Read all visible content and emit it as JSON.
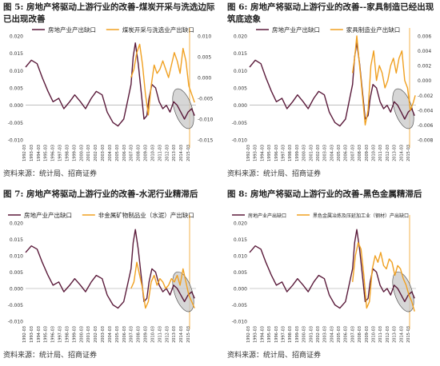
{
  "panels": [
    {
      "title": "图 5: 房地产将驱动上游行业的改善-煤炭开采与洗选边际已出现改善",
      "source": "资料来源：统计局、招商证券",
      "chart_data": {
        "type": "line",
        "legend": [
          "房地产业产出缺口",
          "煤炭开采与洗选业产出缺口"
        ],
        "legend_position": "top",
        "left_axis_ticks": [
          "0.020",
          "0.015",
          "0.010",
          "0.005",
          "0.000",
          "-0.005",
          "-0.010"
        ],
        "right_axis_ticks": [
          "0.010",
          "0.005",
          "0.000",
          "-0.005",
          "-0.010",
          "-0.015"
        ],
        "x_ticks": [
          "1992-03",
          "1993-03",
          "1994-03",
          "1995-03",
          "1996-03",
          "1997-03",
          "1998-03",
          "1999-03",
          "2000-03",
          "2001-03",
          "2002-03",
          "2003-03",
          "2004-03",
          "2005-03",
          "2006-03",
          "2007-03",
          "2008-03",
          "2009-03",
          "2010-03",
          "2011-03",
          "2012-03",
          "2013-03",
          "2014-03",
          "2015-03"
        ],
        "ylim_left": [
          -0.01,
          0.02
        ],
        "ylim_right": [
          -0.015,
          0.01
        ],
        "x_range": [
          1992.2,
          2015.8
        ],
        "series": [
          {
            "name": "房地产业产出缺口",
            "color": "#5a1a3a",
            "axis": "left",
            "x": [
              1992.2,
              1993,
              1993.8,
              1994.5,
              1995.3,
              1996,
              1996.8,
              1997.5,
              1998.3,
              1999,
              1999.8,
              2000.5,
              2001.3,
              2002,
              2002.8,
              2003.5,
              2004.3,
              2005,
              2005.8,
              2006.3,
              2006.8,
              2007.1,
              2007.4,
              2007.8,
              2008.2,
              2008.6,
              2009,
              2009.3,
              2009.7,
              2010.2,
              2010.7,
              2011.2,
              2011.7,
              2012.2,
              2012.7,
              2013.2,
              2013.7,
              2014.2,
              2014.7,
              2015.2,
              2015.6
            ],
            "y": [
              0.011,
              0.013,
              0.012,
              0.008,
              0.004,
              0.001,
              0.002,
              -0.001,
              0.001,
              0.003,
              0.001,
              -0.001,
              0.002,
              0.004,
              0.003,
              -0.002,
              -0.005,
              -0.006,
              -0.004,
              0.001,
              0.006,
              0.014,
              0.018,
              0.012,
              0.004,
              -0.004,
              -0.003,
              0.002,
              0.006,
              0.005,
              0.001,
              -0.001,
              0.0,
              -0.002,
              0.001,
              0.0,
              -0.002,
              -0.004,
              -0.002,
              -0.001,
              -0.003
            ]
          },
          {
            "name": "煤炭开采与洗选业产出缺口",
            "color": "#f0a020",
            "axis": "right",
            "x": [
              2006.8,
              2007.2,
              2007.6,
              2008,
              2008.4,
              2008.8,
              2009.2,
              2009.6,
              2010,
              2010.4,
              2010.8,
              2011.2,
              2011.6,
              2012,
              2012.4,
              2012.8,
              2013.2,
              2013.6,
              2014,
              2014.4,
              2014.8,
              2015.2,
              2015.6
            ],
            "y": [
              0.0,
              0.002,
              0.006,
              0.008,
              0.003,
              -0.004,
              -0.009,
              -0.002,
              0.003,
              0.001,
              0.002,
              0.004,
              0.002,
              0.0,
              0.003,
              0.006,
              0.004,
              0.001,
              0.007,
              0.004,
              -0.002,
              -0.004,
              -0.006
            ]
          }
        ]
      }
    },
    {
      "title": "图 6: 房地产将驱动上游行业的改善--家具制造已经出现筑底迹象",
      "source": "资料来源：统计局、招商证券",
      "chart_data": {
        "type": "line",
        "legend": [
          "房地产业产出缺口",
          "家具制造业产出缺口"
        ],
        "legend_position": "top",
        "left_axis_ticks": [
          "0.020",
          "0.015",
          "0.010",
          "0.005",
          "0.000",
          "-0.005",
          "-0.010"
        ],
        "right_axis_ticks": [
          "0.006",
          "0.004",
          "0.002",
          "0.000",
          "-0.002",
          "-0.004",
          "-0.006",
          "-0.008"
        ],
        "x_ticks": [
          "1992-03",
          "1993-03",
          "1994-03",
          "1995-03",
          "1996-03",
          "1997-03",
          "1998-03",
          "1999-03",
          "2000-03",
          "2001-03",
          "2002-03",
          "2003-03",
          "2004-03",
          "2005-03",
          "2006-03",
          "2007-03",
          "2008-03",
          "2009-03",
          "2010-03",
          "2011-03",
          "2012-03",
          "2013-03",
          "2014-03",
          "2015-03"
        ],
        "ylim_left": [
          -0.01,
          0.02
        ],
        "ylim_right": [
          -0.008,
          0.006
        ],
        "x_range": [
          1992.2,
          2015.8
        ],
        "series": [
          {
            "name": "房地产业产出缺口",
            "color": "#5a1a3a",
            "axis": "left",
            "x": [
              1992.2,
              1993,
              1993.8,
              1994.5,
              1995.3,
              1996,
              1996.8,
              1997.5,
              1998.3,
              1999,
              1999.8,
              2000.5,
              2001.3,
              2002,
              2002.8,
              2003.5,
              2004.3,
              2005,
              2005.8,
              2006.3,
              2006.8,
              2007.1,
              2007.4,
              2007.8,
              2008.2,
              2008.6,
              2009,
              2009.3,
              2009.7,
              2010.2,
              2010.7,
              2011.2,
              2011.7,
              2012.2,
              2012.7,
              2013.2,
              2013.7,
              2014.2,
              2014.7,
              2015.2,
              2015.6
            ],
            "y": [
              0.011,
              0.013,
              0.012,
              0.008,
              0.004,
              0.001,
              0.002,
              -0.001,
              0.001,
              0.003,
              0.001,
              -0.001,
              0.002,
              0.004,
              0.003,
              -0.002,
              -0.005,
              -0.006,
              -0.004,
              0.001,
              0.006,
              0.014,
              0.018,
              0.012,
              0.004,
              -0.004,
              -0.003,
              0.002,
              0.006,
              0.005,
              0.001,
              -0.001,
              0.0,
              -0.002,
              0.001,
              0.0,
              -0.002,
              -0.004,
              -0.002,
              -0.001,
              -0.003
            ]
          },
          {
            "name": "家具制造业产出缺口",
            "color": "#f0a020",
            "axis": "right",
            "x": [
              2006.8,
              2007.1,
              2007.4,
              2007.7,
              2008,
              2008.3,
              2008.6,
              2009,
              2009.4,
              2009.8,
              2010.2,
              2010.6,
              2011,
              2011.4,
              2011.8,
              2012.2,
              2012.6,
              2013,
              2013.4,
              2013.8,
              2014.2,
              2014.6,
              2015,
              2015.4,
              2015.7
            ],
            "y": [
              0.001,
              0.003,
              0.006,
              0.003,
              0.0,
              -0.003,
              -0.006,
              -0.004,
              0.002,
              0.004,
              0.0,
              0.002,
              0.001,
              -0.001,
              0.0,
              0.002,
              0.003,
              0.001,
              0.003,
              0.004,
              0.0,
              -0.001,
              -0.004,
              -0.003,
              -0.002
            ]
          }
        ]
      }
    },
    {
      "title": "图 7: 房地产将驱动上游行业的改善-水泥行业精滞后",
      "source": "资料来源：统计局、招商证券",
      "chart_data": {
        "type": "line",
        "legend": [
          "房地产业产出缺口",
          "非金属矿物制品业（水泥）产出缺口"
        ],
        "legend_position": "top",
        "left_axis_ticks": [
          "0.020",
          "0.015",
          "0.010",
          "0.005",
          "0.000",
          "-0.005",
          "-0.010"
        ],
        "right_axis_ticks": [],
        "x_ticks": [
          "1992-03",
          "1993-03",
          "1994-03",
          "1995-03",
          "1996-03",
          "1997-03",
          "1998-03",
          "1999-03",
          "2000-03",
          "2001-03",
          "2002-03",
          "2003-03",
          "2004-03",
          "2005-03",
          "2006-03",
          "2007-03",
          "2008-03",
          "2009-03",
          "2010-03",
          "2011-03",
          "2012-03",
          "2013-03",
          "2014-03",
          "2015-03"
        ],
        "ylim_left": [
          -0.01,
          0.02
        ],
        "ylim_right": [
          -0.01,
          0.02
        ],
        "x_range": [
          1992.2,
          2015.8
        ],
        "series": [
          {
            "name": "房地产业产出缺口",
            "color": "#5a1a3a",
            "axis": "left",
            "x": [
              1992.2,
              1993,
              1993.8,
              1994.5,
              1995.3,
              1996,
              1996.8,
              1997.5,
              1998.3,
              1999,
              1999.8,
              2000.5,
              2001.3,
              2002,
              2002.8,
              2003.5,
              2004.3,
              2005,
              2005.8,
              2006.3,
              2006.8,
              2007.1,
              2007.4,
              2007.8,
              2008.2,
              2008.6,
              2009,
              2009.3,
              2009.7,
              2010.2,
              2010.7,
              2011.2,
              2011.7,
              2012.2,
              2012.7,
              2013.2,
              2013.7,
              2014.2,
              2014.7,
              2015.2,
              2015.6
            ],
            "y": [
              0.011,
              0.013,
              0.012,
              0.008,
              0.004,
              0.001,
              0.002,
              -0.001,
              0.001,
              0.003,
              0.001,
              -0.001,
              0.002,
              0.004,
              0.003,
              -0.002,
              -0.005,
              -0.006,
              -0.004,
              0.001,
              0.006,
              0.014,
              0.018,
              0.012,
              0.004,
              -0.004,
              -0.003,
              0.002,
              0.006,
              0.005,
              0.001,
              -0.001,
              0.0,
              -0.002,
              0.001,
              0.0,
              -0.002,
              -0.004,
              -0.002,
              -0.001,
              -0.003
            ]
          },
          {
            "name": "非金属矿物制品业（水泥）产出缺口",
            "color": "#f0a020",
            "axis": "right",
            "x": [
              2006.8,
              2007.2,
              2007.6,
              2008,
              2008.4,
              2008.8,
              2009.2,
              2009.6,
              2010,
              2010.4,
              2010.8,
              2011.2,
              2011.6,
              2012,
              2012.4,
              2012.8,
              2013.2,
              2013.6,
              2014,
              2014.4,
              2014.8,
              2015.2,
              2015.6
            ],
            "y": [
              0.0,
              0.002,
              0.008,
              0.004,
              0.0,
              -0.006,
              -0.004,
              0.002,
              0.004,
              0.001,
              0.003,
              0.002,
              0.0,
              0.001,
              0.003,
              0.002,
              0.004,
              0.001,
              0.006,
              0.002,
              -0.002,
              -0.004,
              -0.006
            ]
          }
        ]
      }
    },
    {
      "title": "图 8: 房地产将驱动上游行业的改善-黑色金属精滞后",
      "source": "资料来源：统计局、招商证券",
      "chart_data": {
        "type": "line",
        "legend": [
          "房地产业产出缺口",
          "黑色金属冶炼及压延加工业（钢材）产出缺口"
        ],
        "legend_position": "top",
        "left_axis_ticks": [
          "0.020",
          "0.015",
          "0.010",
          "0.005",
          "0.000",
          "-0.005",
          "-0.010"
        ],
        "right_axis_ticks": [],
        "x_ticks": [
          "1992-03",
          "1993-03",
          "1994-03",
          "1995-03",
          "1996-03",
          "1997-03",
          "1998-03",
          "1999-03",
          "2000-03",
          "2001-03",
          "2002-03",
          "2003-03",
          "2004-03",
          "2005-03",
          "2006-03",
          "2007-03",
          "2008-03",
          "2009-03",
          "2010-03",
          "2011-03",
          "2012-03",
          "2013-03",
          "2014-03",
          "2015-03"
        ],
        "ylim_left": [
          -0.01,
          0.02
        ],
        "ylim_right": [
          -0.01,
          0.02
        ],
        "x_range": [
          1992.2,
          2015.8
        ],
        "series": [
          {
            "name": "房地产业产出缺口",
            "color": "#5a1a3a",
            "axis": "left",
            "x": [
              1992.2,
              1993,
              1993.8,
              1994.5,
              1995.3,
              1996,
              1996.8,
              1997.5,
              1998.3,
              1999,
              1999.8,
              2000.5,
              2001.3,
              2002,
              2002.8,
              2003.5,
              2004.3,
              2005,
              2005.8,
              2006.3,
              2006.8,
              2007.1,
              2007.4,
              2007.8,
              2008.2,
              2008.6,
              2009,
              2009.3,
              2009.7,
              2010.2,
              2010.7,
              2011.2,
              2011.7,
              2012.2,
              2012.7,
              2013.2,
              2013.7,
              2014.2,
              2014.7,
              2015.2,
              2015.6
            ],
            "y": [
              0.011,
              0.013,
              0.012,
              0.008,
              0.004,
              0.001,
              0.002,
              -0.001,
              0.001,
              0.003,
              0.001,
              -0.001,
              0.002,
              0.004,
              0.003,
              -0.002,
              -0.005,
              -0.006,
              -0.004,
              0.001,
              0.006,
              0.014,
              0.018,
              0.012,
              0.004,
              -0.004,
              -0.003,
              0.002,
              0.006,
              0.005,
              0.001,
              -0.001,
              0.0,
              -0.002,
              0.001,
              0.0,
              -0.002,
              -0.004,
              -0.002,
              -0.001,
              -0.003
            ]
          },
          {
            "name": "黑色金属冶炼及压延加工业（钢材）产出缺口",
            "color": "#f0a020",
            "axis": "right",
            "x": [
              2006.8,
              2007.2,
              2007.6,
              2008,
              2008.4,
              2008.8,
              2009.2,
              2009.6,
              2010,
              2010.4,
              2010.8,
              2011.2,
              2011.6,
              2012,
              2012.4,
              2012.8,
              2013.2,
              2013.6,
              2014,
              2014.4,
              2014.8,
              2015.2,
              2015.6
            ],
            "y": [
              0.002,
              0.01,
              0.014,
              0.012,
              0.004,
              -0.006,
              -0.004,
              0.006,
              0.01,
              0.008,
              0.011,
              0.007,
              0.006,
              0.009,
              0.008,
              0.004,
              0.007,
              0.006,
              0.003,
              0.001,
              -0.002,
              -0.004,
              -0.007
            ]
          }
        ]
      }
    }
  ],
  "colors": {
    "primary_series": "#5a1a3a",
    "secondary_series": "#f0a020",
    "highlight_ellipse_fill": "#c8c8c8",
    "axis": "#888888"
  }
}
